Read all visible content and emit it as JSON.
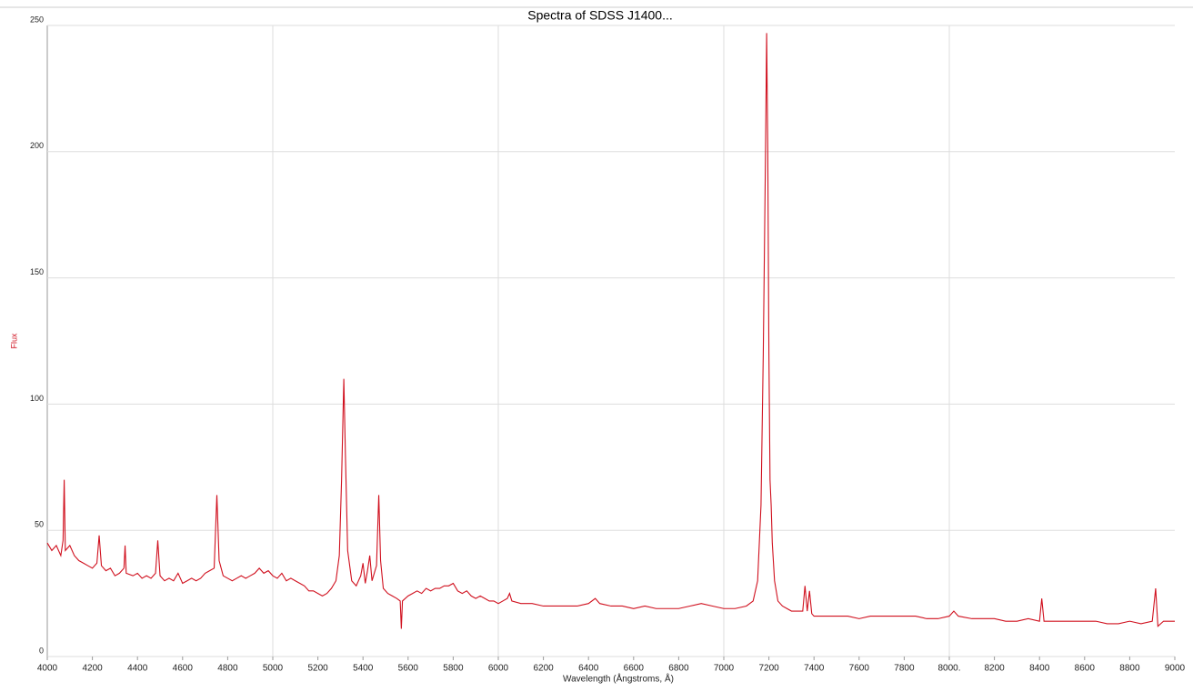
{
  "chart_data": {
    "type": "line",
    "title": "Spectra of SDSS J1400...",
    "x_label": "Wavelength (Ångstroms, Å)",
    "y_label": "Flux",
    "xlim": [
      4000,
      9000
    ],
    "ylim": [
      0,
      250
    ],
    "xticks": [
      4000,
      4200,
      4400,
      4600,
      4800,
      5000,
      5200,
      5400,
      5600,
      5800,
      6000,
      6200,
      6400,
      6600,
      6800,
      7000,
      7200,
      7400,
      7600,
      7800,
      {
        "value": 8000,
        "label": "8000."
      },
      8200,
      8400,
      8600,
      8800,
      9000
    ],
    "yticks": [
      0,
      50,
      100,
      150,
      200,
      250
    ],
    "grid": true,
    "series": [
      {
        "color": "#d0101e",
        "x": [
          4000,
          4020,
          4040,
          4060,
          4070,
          4075,
          4080,
          4100,
          4120,
          4140,
          4160,
          4180,
          4200,
          4220,
          4230,
          4240,
          4260,
          4280,
          4300,
          4320,
          4340,
          4345,
          4350,
          4380,
          4400,
          4420,
          4440,
          4460,
          4480,
          4490,
          4500,
          4520,
          4540,
          4560,
          4580,
          4600,
          4620,
          4640,
          4660,
          4680,
          4700,
          4720,
          4740,
          4752,
          4762,
          4780,
          4800,
          4820,
          4840,
          4860,
          4880,
          4900,
          4920,
          4940,
          4960,
          4980,
          5000,
          5020,
          5040,
          5060,
          5080,
          5100,
          5120,
          5140,
          5160,
          5180,
          5200,
          5220,
          5240,
          5260,
          5280,
          5295,
          5305,
          5315,
          5322,
          5332,
          5350,
          5370,
          5390,
          5400,
          5410,
          5420,
          5430,
          5440,
          5460,
          5470,
          5478,
          5490,
          5510,
          5530,
          5550,
          5565,
          5570,
          5575,
          5600,
          5620,
          5640,
          5660,
          5680,
          5700,
          5720,
          5740,
          5760,
          5780,
          5800,
          5820,
          5840,
          5860,
          5880,
          5900,
          5920,
          5940,
          5960,
          5980,
          6000,
          6020,
          6040,
          6050,
          6060,
          6100,
          6150,
          6200,
          6250,
          6300,
          6350,
          6400,
          6430,
          6450,
          6500,
          6550,
          6600,
          6650,
          6700,
          6750,
          6800,
          6850,
          6900,
          6950,
          7000,
          7050,
          7100,
          7130,
          7150,
          7165,
          7175,
          7185,
          7190,
          7195,
          7200,
          7205,
          7210,
          7215,
          7225,
          7240,
          7260,
          7280,
          7300,
          7350,
          7360,
          7370,
          7380,
          7390,
          7400,
          7450,
          7500,
          7550,
          7600,
          7650,
          7700,
          7750,
          7800,
          7850,
          7900,
          7950,
          8000,
          8020,
          8040,
          8100,
          8150,
          8200,
          8250,
          8300,
          8350,
          8400,
          8410,
          8420,
          8450,
          8500,
          8550,
          8600,
          8650,
          8700,
          8750,
          8800,
          8850,
          8900,
          8915,
          8925,
          8950,
          9000
        ],
        "values": [
          45,
          42,
          44,
          40,
          46,
          70,
          42,
          44,
          40,
          38,
          37,
          36,
          35,
          37,
          48,
          36,
          34,
          35,
          32,
          33,
          35,
          44,
          33,
          32,
          33,
          31,
          32,
          31,
          33,
          46,
          32,
          30,
          31,
          30,
          33,
          29,
          30,
          31,
          30,
          31,
          33,
          34,
          35,
          64,
          38,
          32,
          31,
          30,
          31,
          32,
          31,
          32,
          33,
          35,
          33,
          34,
          32,
          31,
          33,
          30,
          31,
          30,
          29,
          28,
          26,
          26,
          25,
          24,
          25,
          27,
          30,
          40,
          70,
          110,
          80,
          42,
          30,
          28,
          32,
          37,
          29,
          34,
          40,
          30,
          36,
          64,
          38,
          27,
          25,
          24,
          23,
          22,
          11,
          22,
          24,
          25,
          26,
          25,
          27,
          26,
          27,
          27,
          28,
          28,
          29,
          26,
          25,
          26,
          24,
          23,
          24,
          23,
          22,
          22,
          21,
          22,
          23,
          25,
          22,
          21,
          21,
          20,
          20,
          20,
          20,
          21,
          23,
          21,
          20,
          20,
          19,
          20,
          19,
          19,
          19,
          20,
          21,
          20,
          19,
          19,
          20,
          22,
          30,
          60,
          120,
          200,
          247,
          200,
          120,
          70,
          60,
          45,
          30,
          22,
          20,
          19,
          18,
          18,
          28,
          18,
          26,
          17,
          16,
          16,
          16,
          16,
          15,
          16,
          16,
          16,
          16,
          16,
          15,
          15,
          16,
          18,
          16,
          15,
          15,
          15,
          14,
          14,
          15,
          14,
          23,
          14,
          14,
          14,
          14,
          14,
          14,
          13,
          13,
          14,
          13,
          14,
          27,
          12,
          14,
          14
        ]
      }
    ]
  }
}
